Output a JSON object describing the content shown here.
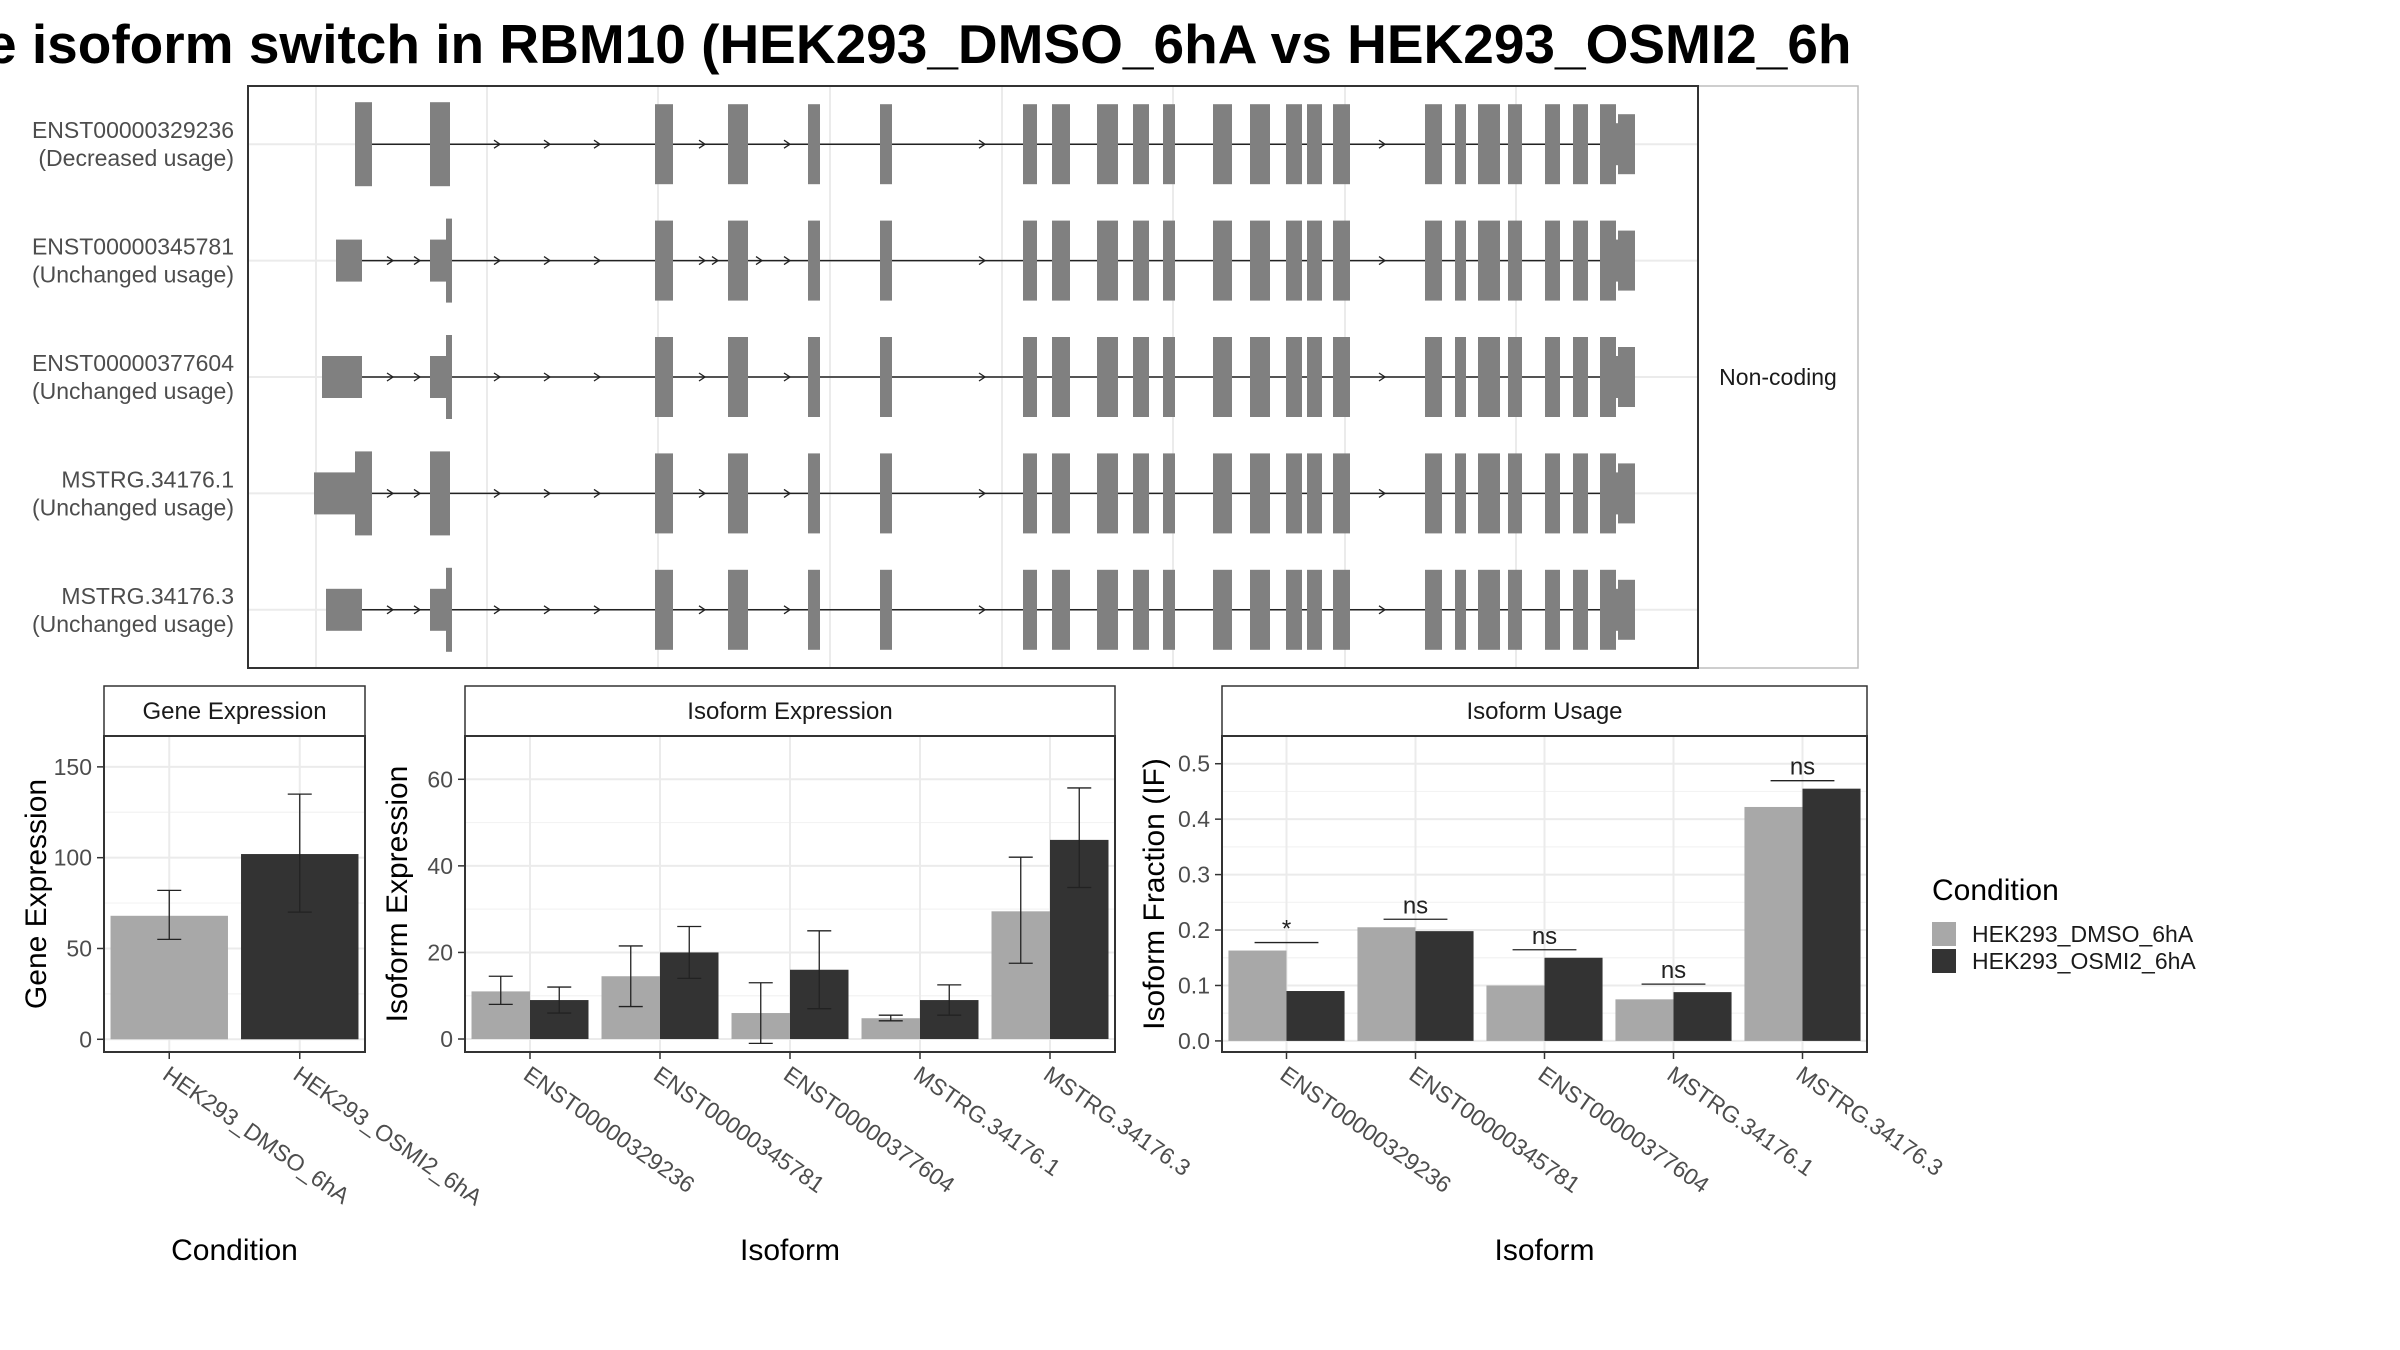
{
  "title": "e isoform switch in RBM10 (HEK293_DMSO_6hA vs HEK293_OSMI2_6h",
  "structure": {
    "strip_label": "Non-coding",
    "isoforms": [
      {
        "id": "ENST00000329236",
        "usage": "(Decreased usage)"
      },
      {
        "id": "ENST00000345781",
        "usage": "(Unchanged usage)"
      },
      {
        "id": "ENST00000377604",
        "usage": "(Unchanged usage)"
      },
      {
        "id": "MSTRG.34176.1",
        "usage": "(Unchanged usage)"
      },
      {
        "id": "MSTRG.34176.3",
        "usage": "(Unchanged usage)"
      }
    ]
  },
  "legend": {
    "title": "Condition",
    "entries": [
      {
        "label": "HEK293_DMSO_6hA",
        "color": "#a8a8a8"
      },
      {
        "label": "HEK293_OSMI2_6hA",
        "color": "#333333"
      }
    ]
  },
  "chart_data": [
    {
      "type": "bar",
      "title": "Gene Expression",
      "xlabel": "Condition",
      "ylabel": "Gene Expression",
      "categories": [
        "HEK293_DMSO_6hA",
        "HEK293_OSMI2_6hA"
      ],
      "values": [
        68,
        102
      ],
      "error_low": [
        55,
        70
      ],
      "error_high": [
        82,
        135
      ],
      "colors": [
        "#a8a8a8",
        "#333333"
      ],
      "ylim": [
        -7,
        167
      ],
      "yticks": [
        0,
        50,
        100,
        150
      ]
    },
    {
      "type": "bar",
      "title": "Isoform Expression",
      "xlabel": "Isoform",
      "ylabel": "Isoform Expression",
      "categories": [
        "ENST00000329236",
        "ENST00000345781",
        "ENST00000377604",
        "MSTRG.34176.1",
        "MSTRG.34176.3"
      ],
      "ylim": [
        -3,
        70
      ],
      "yticks": [
        0,
        20,
        40,
        60
      ],
      "series": [
        {
          "name": "HEK293_DMSO_6hA",
          "values": [
            11,
            14.5,
            6,
            4.8,
            29.5
          ],
          "error_low": [
            8,
            7.5,
            -1,
            4.2,
            17.5
          ],
          "error_high": [
            14.5,
            21.5,
            13,
            5.5,
            42
          ],
          "color": "#a8a8a8"
        },
        {
          "name": "HEK293_OSMI2_6hA",
          "values": [
            9,
            20,
            16,
            9,
            46
          ],
          "error_low": [
            6,
            14,
            7,
            5.5,
            35
          ],
          "error_high": [
            12,
            26,
            25,
            12.5,
            58
          ],
          "color": "#333333"
        }
      ]
    },
    {
      "type": "bar",
      "title": "Isoform Usage",
      "xlabel": "Isoform",
      "ylabel": "Isoform Fraction (IF)",
      "categories": [
        "ENST00000329236",
        "ENST00000345781",
        "ENST00000377604",
        "MSTRG.34176.1",
        "MSTRG.34176.3"
      ],
      "ylim": [
        -0.02,
        0.55
      ],
      "yticks": [
        0.0,
        0.1,
        0.2,
        0.3,
        0.4,
        0.5
      ],
      "ytick_labels": [
        "0.0",
        "0.1",
        "0.2",
        "0.3",
        "0.4",
        "0.5"
      ],
      "series": [
        {
          "name": "HEK293_DMSO_6hA",
          "values": [
            0.163,
            0.205,
            0.1,
            0.075,
            0.422
          ],
          "color": "#a8a8a8"
        },
        {
          "name": "HEK293_OSMI2_6hA",
          "values": [
            0.09,
            0.198,
            0.15,
            0.088,
            0.455
          ],
          "color": "#333333"
        }
      ],
      "significance": [
        "*",
        "ns",
        "ns",
        "ns",
        "ns"
      ]
    }
  ]
}
